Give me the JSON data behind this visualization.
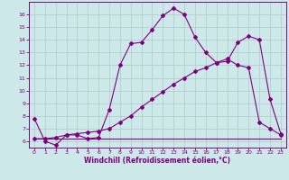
{
  "xlabel": "Windchill (Refroidissement éolien,°C)",
  "background_color": "#cce8e8",
  "line_color": "#800080",
  "grid_color": "#b0c8c8",
  "xlim": [
    -0.5,
    23.5
  ],
  "ylim": [
    5.5,
    17.0
  ],
  "xticks": [
    0,
    1,
    2,
    3,
    4,
    5,
    6,
    7,
    8,
    9,
    10,
    11,
    12,
    13,
    14,
    15,
    16,
    17,
    18,
    19,
    20,
    21,
    22,
    23
  ],
  "yticks": [
    6,
    7,
    8,
    9,
    10,
    11,
    12,
    13,
    14,
    15,
    16
  ],
  "series1_x": [
    0,
    1,
    2,
    3,
    4,
    5,
    6,
    7,
    8,
    9,
    10,
    11,
    12,
    13,
    14,
    15,
    16,
    17,
    18,
    19,
    20,
    21,
    22,
    23
  ],
  "series1_y": [
    7.8,
    6.0,
    5.7,
    6.5,
    6.5,
    6.2,
    6.3,
    8.5,
    12.0,
    13.7,
    13.8,
    14.8,
    15.9,
    16.5,
    16.0,
    14.2,
    13.0,
    12.2,
    12.3,
    13.8,
    14.3,
    14.0,
    9.3,
    6.6
  ],
  "series2_x": [
    0,
    1,
    2,
    3,
    4,
    5,
    6,
    7,
    8,
    9,
    10,
    11,
    12,
    13,
    14,
    15,
    16,
    17,
    18,
    19,
    20,
    21,
    22,
    23
  ],
  "series2_y": [
    6.2,
    6.2,
    6.3,
    6.5,
    6.6,
    6.7,
    6.8,
    7.0,
    7.5,
    8.0,
    8.7,
    9.3,
    9.9,
    10.5,
    11.0,
    11.5,
    11.8,
    12.2,
    12.5,
    12.0,
    11.8,
    7.5,
    7.0,
    6.5
  ],
  "series3_x": [
    0,
    23
  ],
  "series3_y": [
    6.2,
    6.2
  ],
  "marker": "D",
  "markersize": 2.0,
  "linewidth": 0.8,
  "tick_fontsize": 4.5,
  "xlabel_fontsize": 5.5
}
